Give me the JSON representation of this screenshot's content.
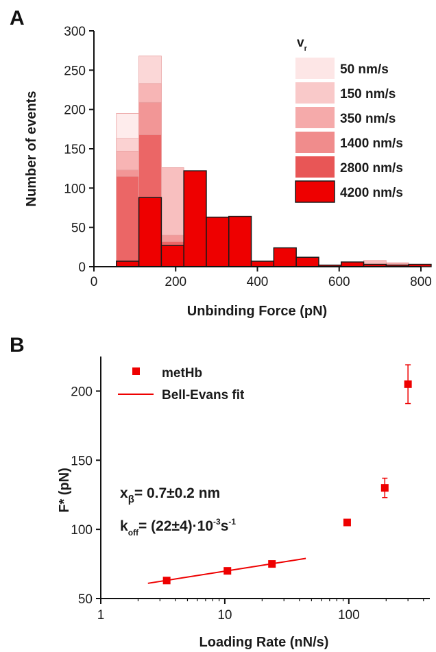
{
  "panel_a_label": "A",
  "panel_b_label": "B",
  "chart_data": [
    {
      "type": "bar",
      "panel": "A",
      "xlabel": "Unbinding Force (pN)",
      "ylabel": "Number of events",
      "xlim": [
        0,
        800
      ],
      "ylim": [
        0,
        300
      ],
      "xticks": [
        0,
        200,
        400,
        600,
        800
      ],
      "yticks": [
        0,
        50,
        100,
        150,
        200,
        250,
        300
      ],
      "bin_width": 55,
      "legend_title": "v",
      "legend_title_sub": "r",
      "legend_placement": "top-right",
      "series": [
        {
          "name": "50 nm/s",
          "color": "#fde6e6",
          "bins": [
            {
              "x": 55,
              "y": 195
            },
            {
              "x": 110,
              "y": 0
            }
          ]
        },
        {
          "name": "150 nm/s",
          "color": "#f9c9c9",
          "bins": [
            {
              "x": 55,
              "y": 163
            },
            {
              "x": 110,
              "y": 268
            }
          ]
        },
        {
          "name": "350 nm/s",
          "color": "#f5aaaa",
          "bins": [
            {
              "x": 55,
              "y": 147
            },
            {
              "x": 110,
              "y": 233
            },
            {
              "x": 165,
              "y": 126
            },
            {
              "x": 330,
              "y": 20
            },
            {
              "x": 440,
              "y": 9
            },
            {
              "x": 495,
              "y": 8
            },
            {
              "x": 660,
              "y": 8
            }
          ]
        },
        {
          "name": "1400 nm/s",
          "color": "#f08c8c",
          "bins": [
            {
              "x": 55,
              "y": 123
            },
            {
              "x": 110,
              "y": 209
            },
            {
              "x": 165,
              "y": 40
            },
            {
              "x": 715,
              "y": 5
            }
          ]
        },
        {
          "name": "2800 nm/s",
          "color": "#e85656",
          "bins": [
            {
              "x": 55,
              "y": 115
            },
            {
              "x": 110,
              "y": 168
            },
            {
              "x": 165,
              "y": 32
            }
          ]
        },
        {
          "name": "4200 nm/s",
          "color": "#ee0000",
          "bins": [
            {
              "x": 55,
              "y": 7
            },
            {
              "x": 110,
              "y": 88
            },
            {
              "x": 165,
              "y": 27
            },
            {
              "x": 220,
              "y": 122
            },
            {
              "x": 275,
              "y": 63
            },
            {
              "x": 330,
              "y": 64
            },
            {
              "x": 385,
              "y": 7
            },
            {
              "x": 440,
              "y": 24
            },
            {
              "x": 495,
              "y": 12
            },
            {
              "x": 550,
              "y": 2
            },
            {
              "x": 605,
              "y": 6
            },
            {
              "x": 660,
              "y": 3
            },
            {
              "x": 715,
              "y": 2
            },
            {
              "x": 770,
              "y": 3
            }
          ]
        }
      ]
    },
    {
      "type": "scatter",
      "panel": "B",
      "xlabel": "Loading Rate (nN/s)",
      "ylabel": "F* (pN)",
      "xscale": "log",
      "xlim": [
        1,
        450
      ],
      "ylim": [
        50,
        225
      ],
      "xticks": [
        1,
        10,
        100
      ],
      "xtick_labels": [
        "1",
        "10",
        "100"
      ],
      "yticks": [
        50,
        100,
        150,
        200
      ],
      "legend_placement": "top-left",
      "series": [
        {
          "name": "metHb",
          "type": "scatter",
          "color": "#ee0000",
          "points": [
            {
              "x": 3.4,
              "y": 63,
              "err": 0
            },
            {
              "x": 10.5,
              "y": 70,
              "err": 0
            },
            {
              "x": 24,
              "y": 75,
              "err": 0
            },
            {
              "x": 97,
              "y": 105,
              "err": 0
            },
            {
              "x": 195,
              "y": 130,
              "err": 7
            },
            {
              "x": 300,
              "y": 205,
              "err": 14
            }
          ]
        },
        {
          "name": "Bell-Evans fit",
          "type": "line",
          "color": "#ee0000",
          "points": [
            {
              "x": 2.4,
              "y": 61
            },
            {
              "x": 45,
              "y": 79
            }
          ]
        }
      ],
      "annotations": {
        "x_beta_main": "x",
        "x_beta_sub": "β",
        "x_beta_value": "= 0.7±0.2 nm",
        "koff_main": "k",
        "koff_sub": "off",
        "koff_value": "= (22±4)·10",
        "koff_exp1": "-3",
        "koff_unit": "s",
        "koff_exp2": "-1"
      }
    }
  ]
}
